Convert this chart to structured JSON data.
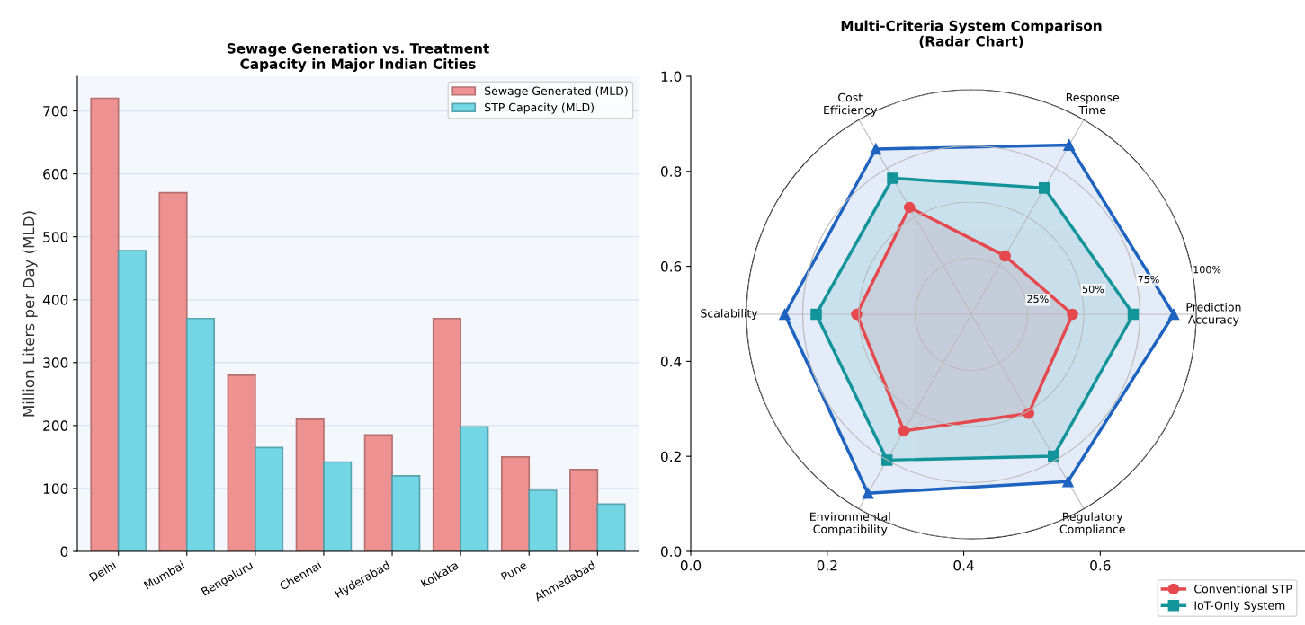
{
  "chart_data": [
    {
      "type": "bar",
      "title": "Sewage Generation vs. Treatment\nCapacity in Major Indian Cities",
      "ylabel": "Million Liters per Day (MLD)",
      "categories": [
        "Delhi",
        "Mumbai",
        "Bengaluru",
        "Chennai",
        "Hyderabad",
        "Kolkata",
        "Pune",
        "Ahmedabad"
      ],
      "series": [
        {
          "name": "Sewage Generated (MLD)",
          "color": "#ee8c8c",
          "values": [
            720,
            570,
            280,
            210,
            185,
            370,
            150,
            130
          ]
        },
        {
          "name": "STP Capacity (MLD)",
          "color": "#6cd5e4",
          "values": [
            478,
            370,
            165,
            142,
            120,
            198,
            97,
            75
          ]
        }
      ],
      "ylim": [
        0,
        755
      ],
      "yticks": [
        0,
        100,
        200,
        300,
        400,
        500,
        600,
        700
      ],
      "grid": "y",
      "legend": "top right"
    },
    {
      "type": "radar",
      "title": "Multi-Criteria System Comparison\n(Radar Chart)",
      "categories": [
        "Response\nTime",
        "Prediction\nAccuracy",
        "Regulatory\nCompliance",
        "Environmental\nCompatibility",
        "Scalability",
        "Cost\nEfficiency"
      ],
      "series": [
        {
          "name": "Conventional STP",
          "color": "#e5484d",
          "marker": "circle",
          "values": [
            0.3,
            0.45,
            0.51,
            0.6,
            0.51,
            0.55
          ]
        },
        {
          "name": "IoT-Only System",
          "color": "#13939a",
          "marker": "square",
          "values": [
            0.65,
            0.72,
            0.73,
            0.75,
            0.69,
            0.7
          ]
        },
        {
          "color": "#1f63c0",
          "marker": "triangle",
          "values": [
            0.87,
            0.9,
            0.86,
            0.92,
            0.83,
            0.85
          ]
        }
      ],
      "ylim": [
        0,
        1
      ],
      "yticks": [
        {
          "value": 0.25,
          "label": "25%"
        },
        {
          "value": 0.5,
          "label": "50%"
        },
        {
          "value": 0.75,
          "label": "75%"
        },
        {
          "value": 1.0,
          "label": "100%"
        }
      ],
      "grid": true,
      "legend": "bottom right"
    },
    {
      "type": "scatter",
      "xlim": [
        0,
        0.9
      ],
      "ylim": [
        0,
        1
      ],
      "xticks": [
        {
          "value": 0,
          "label": "0.0"
        },
        0.2,
        0.4,
        0.6
      ],
      "yticks": [
        {
          "value": 0,
          "label": "0.0"
        },
        0.2,
        0.4,
        0.6,
        0.8,
        {
          "value": 1,
          "label": "1.0"
        }
      ]
    }
  ]
}
